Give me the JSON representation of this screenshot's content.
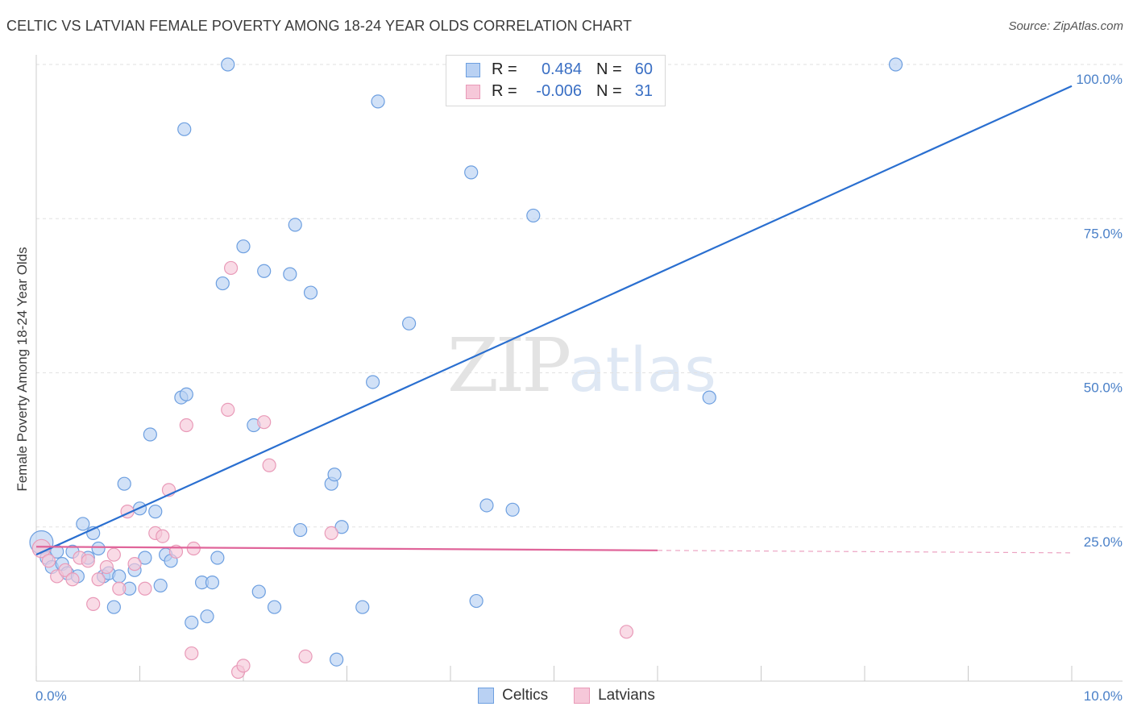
{
  "chart_data": {
    "type": "scatter",
    "title": "CELTIC VS LATVIAN FEMALE POVERTY AMONG 18-24 YEAR OLDS CORRELATION CHART",
    "source": "Source: ZipAtlas.com",
    "xlabel": "",
    "ylabel": "Female Poverty Among 18-24 Year Olds",
    "xlim": [
      0,
      10
    ],
    "ylim": [
      0,
      102
    ],
    "x_tick_labels": [
      "0.0%",
      "10.0%"
    ],
    "y_ticks": [
      25,
      50,
      75,
      100
    ],
    "y_tick_labels": [
      "25.0%",
      "50.0%",
      "75.0%",
      "100.0%"
    ],
    "watermark": {
      "zip": "ZIP",
      "atlas": "atlas"
    },
    "legend": {
      "rows": [
        {
          "r_label": "R =",
          "r_value": "0.484",
          "n_label": "N =",
          "n_value": "60"
        },
        {
          "r_label": "R =",
          "r_value": "-0.006",
          "n_label": "N =",
          "n_value": "31"
        }
      ]
    },
    "series": [
      {
        "name": "Celtics",
        "color": "#6d9fe0",
        "fill": "#b9d1f3",
        "trend": {
          "x0": 0.0,
          "y0": 20.5,
          "x1": 10.0,
          "y1": 96.5,
          "color": "#2a6fd0"
        },
        "points": [
          [
            0.05,
            22.5,
            18
          ],
          [
            0.1,
            20,
            10
          ],
          [
            0.15,
            18.5,
            10
          ],
          [
            0.2,
            21,
            10
          ],
          [
            0.25,
            19,
            10
          ],
          [
            0.3,
            17.5,
            10
          ],
          [
            0.35,
            21,
            10
          ],
          [
            0.4,
            17,
            10
          ],
          [
            0.45,
            25.5,
            10
          ],
          [
            0.5,
            20,
            10
          ],
          [
            0.55,
            24,
            10
          ],
          [
            0.6,
            21.5,
            10
          ],
          [
            0.65,
            17,
            10
          ],
          [
            0.7,
            17.5,
            10
          ],
          [
            0.75,
            12,
            10
          ],
          [
            0.8,
            17,
            10
          ],
          [
            0.85,
            32,
            10
          ],
          [
            0.9,
            15,
            10
          ],
          [
            0.95,
            18,
            10
          ],
          [
            1.0,
            28,
            10
          ],
          [
            1.05,
            20,
            10
          ],
          [
            1.1,
            40,
            10
          ],
          [
            1.15,
            27.5,
            10
          ],
          [
            1.2,
            15.5,
            10
          ],
          [
            1.25,
            20.5,
            10
          ],
          [
            1.3,
            19.5,
            10
          ],
          [
            1.4,
            46,
            10
          ],
          [
            1.45,
            46.5,
            10
          ],
          [
            1.5,
            9.5,
            10
          ],
          [
            1.6,
            16,
            10
          ],
          [
            1.65,
            10.5,
            10
          ],
          [
            1.7,
            16,
            10
          ],
          [
            1.75,
            20,
            10
          ],
          [
            1.8,
            64.5,
            10
          ],
          [
            1.85,
            100,
            10
          ],
          [
            2.0,
            70.5,
            10
          ],
          [
            2.1,
            41.5,
            10
          ],
          [
            2.15,
            14.5,
            10
          ],
          [
            2.2,
            66.5,
            10
          ],
          [
            2.3,
            12,
            10
          ],
          [
            2.45,
            66,
            10
          ],
          [
            2.5,
            74,
            10
          ],
          [
            2.55,
            24.5,
            10
          ],
          [
            2.65,
            63,
            10
          ],
          [
            2.85,
            32,
            10
          ],
          [
            2.88,
            33.5,
            10
          ],
          [
            2.9,
            3.5,
            10
          ],
          [
            2.95,
            25,
            10
          ],
          [
            3.15,
            12,
            10
          ],
          [
            3.25,
            48.5,
            10
          ],
          [
            3.3,
            94,
            10
          ],
          [
            3.6,
            58,
            10
          ],
          [
            4.2,
            82.5,
            10
          ],
          [
            4.25,
            13,
            10
          ],
          [
            4.35,
            28.5,
            10
          ],
          [
            4.6,
            27.8,
            10
          ],
          [
            4.8,
            75.5,
            10
          ],
          [
            1.43,
            89.5,
            10
          ],
          [
            6.5,
            46,
            10
          ],
          [
            8.3,
            100,
            10
          ]
        ]
      },
      {
        "name": "Latvians",
        "color": "#e99ab8",
        "fill": "#f6c8d9",
        "trend": {
          "x0": 0.0,
          "y0": 21.8,
          "x1": 6.0,
          "y1": 21.2,
          "dash_to_x": 10.0,
          "dash_to_y": 20.8,
          "color": "#e0659a"
        },
        "points": [
          [
            0.05,
            21.5,
            14
          ],
          [
            0.12,
            19.5,
            10
          ],
          [
            0.2,
            17,
            10
          ],
          [
            0.28,
            18,
            10
          ],
          [
            0.35,
            16.5,
            10
          ],
          [
            0.42,
            20,
            10
          ],
          [
            0.5,
            19.5,
            10
          ],
          [
            0.55,
            12.5,
            10
          ],
          [
            0.6,
            16.5,
            10
          ],
          [
            0.68,
            18.5,
            10
          ],
          [
            0.75,
            20.5,
            10
          ],
          [
            0.8,
            15,
            10
          ],
          [
            0.88,
            27.5,
            10
          ],
          [
            0.95,
            19,
            10
          ],
          [
            1.05,
            15,
            10
          ],
          [
            1.15,
            24,
            10
          ],
          [
            1.22,
            23.5,
            10
          ],
          [
            1.28,
            31,
            10
          ],
          [
            1.35,
            21,
            10
          ],
          [
            1.45,
            41.5,
            10
          ],
          [
            1.5,
            4.5,
            10
          ],
          [
            1.52,
            21.5,
            10
          ],
          [
            1.85,
            44,
            10
          ],
          [
            1.88,
            67,
            10
          ],
          [
            1.95,
            1.5,
            10
          ],
          [
            2.0,
            2.5,
            10
          ],
          [
            2.2,
            42,
            10
          ],
          [
            2.25,
            35,
            10
          ],
          [
            2.6,
            4,
            10
          ],
          [
            2.85,
            24,
            10
          ],
          [
            5.7,
            8,
            10
          ]
        ]
      }
    ]
  }
}
